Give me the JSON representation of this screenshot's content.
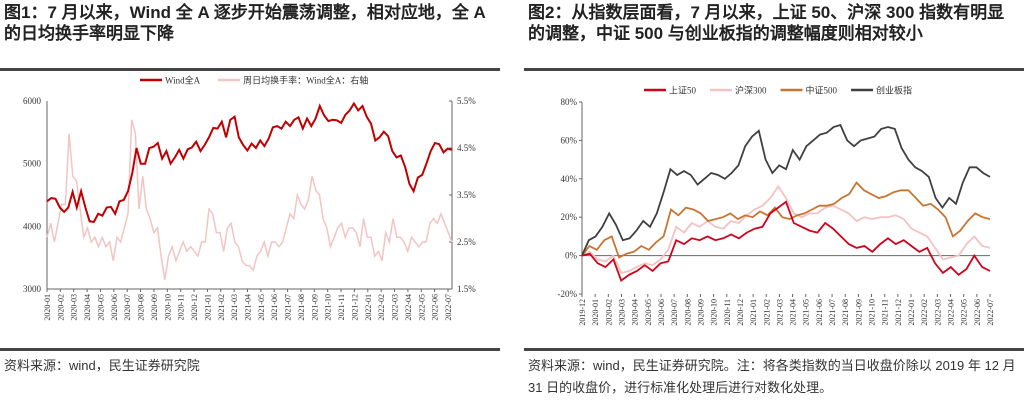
{
  "figures": [
    {
      "title": "图1：7 月以来，Wind 全 A 逐步开始震荡调整，相对应地，全 A 的日均换手率明显下降",
      "source": "资料来源：wind，民生证券研究院"
    },
    {
      "title": "图2：从指数层面看，7 月以来，上证 50、沪深 300 指数有明显的调整，中证 500 与创业板指的调整幅度则相对较小",
      "source": "资料来源：wind，民生证券研究院。注：将各类指数的当日收盘价除以 2019 年 12 月 31 日的收盘价，进行标准化处理后进行对数化处理。"
    }
  ],
  "chart_data": [
    {
      "type": "line",
      "title": "",
      "x_labels": [
        "2020-01",
        "2020-02",
        "2020-03",
        "2020-04",
        "2020-05",
        "2020-06",
        "2020-07",
        "2020-08",
        "2020-09",
        "2020-10",
        "2020-11",
        "2020-12",
        "2021-01",
        "2021-02",
        "2021-03",
        "2021-04",
        "2021-05",
        "2021-06",
        "2021-07",
        "2021-08",
        "2021-09",
        "2021-10",
        "2021-11",
        "2021-12",
        "2022-01",
        "2022-02",
        "2022-03",
        "2022-04",
        "2022-05",
        "2022-06",
        "2022-07"
      ],
      "ylim_left": [
        3000,
        6000
      ],
      "yticks_left": [
        "3000",
        "4000",
        "5000",
        "6000"
      ],
      "ylim_right": [
        1.5,
        5.5
      ],
      "yticks_right": [
        "1.5%",
        "2.5%",
        "3.5%",
        "4.5%",
        "5.5%"
      ],
      "series": [
        {
          "name": "Wind全A",
          "axis": "left",
          "color": "#c00000",
          "width": 2,
          "values": [
            4400,
            4450,
            4440,
            4300,
            4230,
            4300,
            4550,
            4300,
            4560,
            4300,
            4080,
            4070,
            4200,
            4170,
            4300,
            4310,
            4200,
            4400,
            4420,
            4560,
            4850,
            5250,
            5000,
            5000,
            5250,
            5270,
            5330,
            5080,
            5200,
            5000,
            5100,
            5220,
            5080,
            5230,
            5260,
            5350,
            5200,
            5300,
            5420,
            5570,
            5560,
            5670,
            5420,
            5700,
            5750,
            5420,
            5300,
            5210,
            5320,
            5250,
            5370,
            5280,
            5400,
            5580,
            5600,
            5560,
            5670,
            5600,
            5700,
            5740,
            5560,
            5720,
            5600,
            5720,
            5920,
            5770,
            5680,
            5700,
            5690,
            5650,
            5780,
            5850,
            5960,
            5850,
            5920,
            5750,
            5640,
            5370,
            5420,
            5510,
            5440,
            5200,
            5100,
            5130,
            4950,
            4680,
            4560,
            4780,
            4820,
            5000,
            5200,
            5330,
            5310,
            5180,
            5240,
            5220
          ]
        },
        {
          "name": "周日均换手率：Wind全A：右轴",
          "axis": "right",
          "color": "#f2c4c4",
          "width": 1.5,
          "values": [
            2.6,
            2.9,
            2.5,
            2.9,
            3.3,
            3.3,
            4.8,
            3.9,
            3.8,
            3.2,
            2.6,
            2.8,
            2.5,
            2.6,
            2.4,
            2.6,
            2.4,
            2.5,
            2.1,
            2.6,
            2.5,
            2.8,
            3.1,
            5.1,
            4.8,
            3.2,
            3.9,
            3.2,
            3.0,
            2.7,
            2.8,
            2.2,
            1.7,
            2.2,
            2.4,
            2.1,
            2.3,
            2.5,
            2.3,
            2.4,
            2.3,
            2.2,
            2.5,
            2.5,
            3.2,
            3.1,
            2.7,
            2.7,
            2.3,
            2.8,
            2.9,
            2.5,
            2.4,
            2.1,
            2.0,
            2.0,
            1.9,
            2.2,
            2.3,
            2.5,
            2.2,
            2.5,
            2.5,
            2.4,
            2.5,
            2.8,
            3.1,
            3.0,
            3.5,
            3.3,
            3.2,
            3.4,
            3.9,
            3.6,
            3.5,
            3.0,
            2.8,
            2.4,
            2.6,
            2.8,
            2.9,
            2.6,
            2.8,
            2.8,
            2.7,
            2.4,
            3.0,
            2.6,
            2.6,
            2.2,
            2.3,
            2.1,
            2.7,
            2.5,
            3.0,
            2.6,
            2.6,
            2.5,
            2.3,
            2.6,
            2.5,
            2.4,
            2.5,
            2.5,
            2.9,
            3.0,
            2.9,
            3.1,
            2.9,
            2.7,
            2.5
          ]
        }
      ]
    },
    {
      "type": "line",
      "title": "",
      "x_labels": [
        "2019-12",
        "2020-01",
        "2020-02",
        "2020-03",
        "2020-04",
        "2020-05",
        "2020-06",
        "2020-07",
        "2020-08",
        "2020-09",
        "2020-10",
        "2020-11",
        "2020-12",
        "2021-01",
        "2021-02",
        "2021-03",
        "2021-04",
        "2021-05",
        "2021-06",
        "2021-07",
        "2021-08",
        "2021-09",
        "2021-10",
        "2021-11",
        "2021-12",
        "2022-01",
        "2022-02",
        "2022-03",
        "2022-04",
        "2022-05",
        "2022-06",
        "2022-07"
      ],
      "ylim": [
        -20,
        80
      ],
      "yticks": [
        "-20%",
        "0%",
        "20%",
        "40%",
        "60%",
        "80%"
      ],
      "series": [
        {
          "name": "上证50",
          "color": "#d0021b",
          "values": [
            0,
            1,
            -4,
            -6,
            -2,
            -13,
            -10,
            -8,
            -5,
            -8,
            -4,
            -3,
            8,
            6,
            9,
            8,
            10,
            8,
            9,
            11,
            9,
            12,
            14,
            15,
            22,
            25,
            28,
            17,
            15,
            13,
            12,
            17,
            14,
            10,
            6,
            4,
            5,
            2,
            6,
            9,
            6,
            8,
            5,
            2,
            4,
            -4,
            -9,
            -6,
            -10,
            -7,
            0,
            -6,
            -8
          ]
        },
        {
          "name": "沪深300",
          "color": "#f4c2c2",
          "values": [
            0,
            2,
            -2,
            -3,
            0,
            -9,
            -8,
            -6,
            -4,
            -5,
            -2,
            3,
            15,
            12,
            17,
            15,
            18,
            15,
            14,
            18,
            17,
            21,
            24,
            26,
            30,
            36,
            30,
            22,
            20,
            22,
            22,
            25,
            26,
            24,
            22,
            18,
            20,
            19,
            20,
            20,
            21,
            19,
            14,
            12,
            10,
            4,
            -2,
            -1,
            0,
            6,
            10,
            5,
            4
          ]
        },
        {
          "name": "中证500",
          "color": "#c87533",
          "values": [
            0,
            5,
            3,
            8,
            10,
            -1,
            1,
            2,
            5,
            3,
            7,
            10,
            24,
            21,
            25,
            24,
            22,
            18,
            19,
            20,
            22,
            19,
            21,
            20,
            23,
            21,
            25,
            20,
            19,
            21,
            22,
            24,
            26,
            26,
            27,
            30,
            32,
            38,
            34,
            32,
            30,
            31,
            33,
            34,
            34,
            30,
            26,
            27,
            24,
            20,
            10,
            13,
            18,
            22,
            20,
            19
          ]
        },
        {
          "name": "创业板指",
          "color": "#404040",
          "values": [
            0,
            8,
            10,
            15,
            22,
            16,
            8,
            9,
            13,
            18,
            15,
            22,
            33,
            45,
            42,
            44,
            42,
            37,
            40,
            43,
            42,
            40,
            43,
            47,
            57,
            62,
            65,
            50,
            43,
            47,
            45,
            55,
            50,
            57,
            60,
            63,
            64,
            67,
            68,
            60,
            57,
            60,
            61,
            62,
            66,
            67,
            66,
            56,
            50,
            46,
            44,
            41,
            30,
            25,
            30,
            27,
            38,
            46,
            46,
            43,
            41
          ]
        }
      ]
    }
  ]
}
